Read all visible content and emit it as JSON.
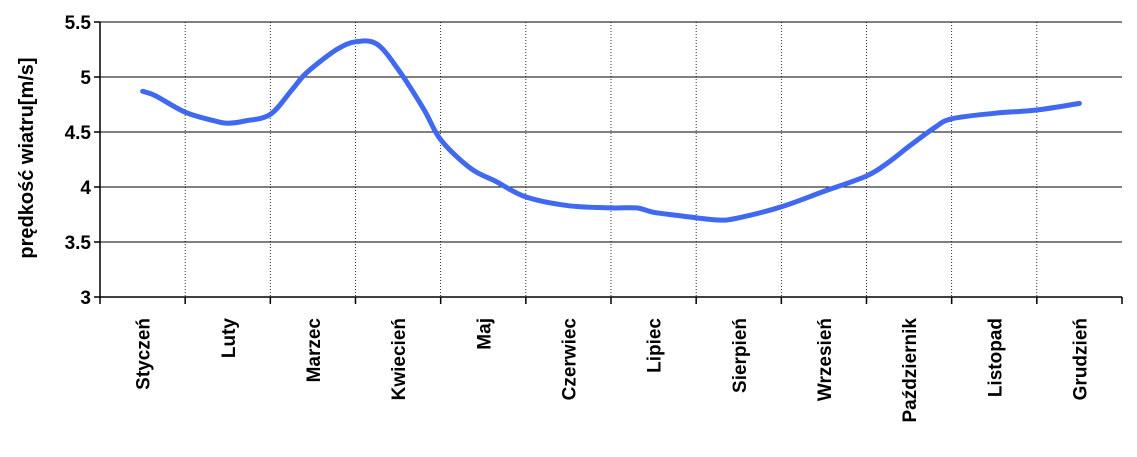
{
  "chart_data": {
    "type": "line",
    "title": "",
    "xlabel": "",
    "ylabel": "prędkość wiatru[m/s]",
    "categories": [
      "Styczeń",
      "Luty",
      "Marzec",
      "Kwiecień",
      "Maj",
      "Czerwiec",
      "Lipiec",
      "Sierpień",
      "Wrzesień",
      "Październik",
      "Listopad",
      "Grudzień"
    ],
    "ylim": [
      3,
      5.5
    ],
    "yticks": [
      "3",
      "3.5",
      "4",
      "4.5",
      "5",
      "5.5"
    ],
    "grid": true,
    "legend": "none",
    "series": [
      {
        "color": "#4169f0",
        "x": [
          0,
          0.15,
          0.5,
          0.85,
          1.0,
          1.2,
          1.5,
          1.75,
          1.9,
          2.1,
          2.3,
          2.5,
          2.75,
          3.0,
          3.3,
          3.5,
          3.85,
          4.15,
          4.5,
          5.0,
          5.5,
          5.8,
          6.0,
          6.3,
          6.75,
          7.0,
          7.5,
          8.0,
          8.5,
          8.75,
          9.0,
          9.3,
          9.5,
          10.0,
          10.5,
          11.0
        ],
        "y": [
          4.87,
          4.83,
          4.68,
          4.6,
          4.58,
          4.6,
          4.66,
          4.88,
          5.02,
          5.15,
          5.26,
          5.32,
          5.3,
          5.07,
          4.71,
          4.43,
          4.17,
          4.05,
          3.91,
          3.83,
          3.81,
          3.81,
          3.77,
          3.74,
          3.7,
          3.72,
          3.82,
          3.96,
          4.1,
          4.22,
          4.37,
          4.54,
          4.62,
          4.67,
          4.7,
          4.76
        ]
      }
    ]
  }
}
